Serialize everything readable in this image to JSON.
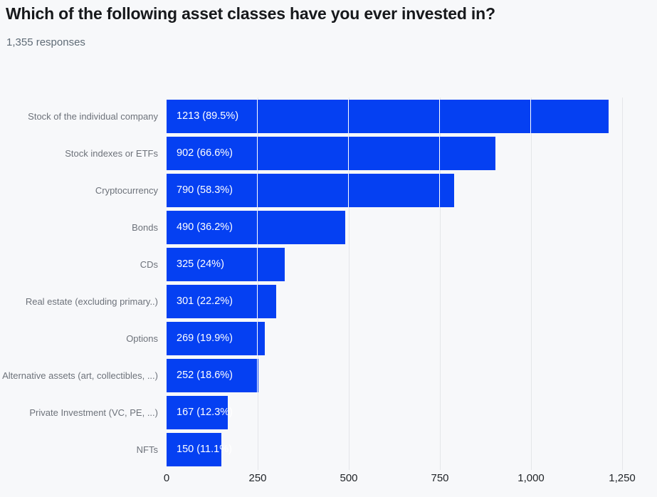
{
  "header": {
    "title": "Which of the following asset classes have you ever invested in?",
    "subtitle": "1,355 responses"
  },
  "chart_data": {
    "type": "bar",
    "orientation": "horizontal",
    "title": "Which of the following asset classes have you ever invested in?",
    "subtitle": "1,355 responses",
    "total_responses": 1355,
    "categories": [
      "Stock of the individual company",
      "Stock indexes or ETFs",
      "Cryptocurrency",
      "Bonds",
      "CDs",
      "Real estate (excluding primary..)",
      "Options",
      "Alternative assets (art, collectibles, ...)",
      "Private Investment (VC, PE, ...)",
      "NFTs"
    ],
    "values": [
      1213,
      902,
      790,
      490,
      325,
      301,
      269,
      252,
      167,
      150
    ],
    "percentages": [
      89.5,
      66.6,
      58.3,
      36.2,
      24,
      22.2,
      19.9,
      18.6,
      12.3,
      11.1
    ],
    "bar_labels": [
      "1213 (89.5%)",
      "902 (66.6%)",
      "790 (58.3%)",
      "490 (36.2%)",
      "325 (24%)",
      "301 (22.2%)",
      "269 (19.9%)",
      "252 (18.6%)",
      "167 (12.3%)",
      "150 (11.1%)"
    ],
    "xlabel": "",
    "ylabel": "",
    "xlim": [
      0,
      1250
    ],
    "x_tick_values": [
      0,
      250,
      500,
      750,
      1000,
      1250
    ],
    "x_tick_labels": [
      "0",
      "250",
      "500",
      "750",
      "1,000",
      "1,250"
    ],
    "grid": true,
    "legend": false,
    "colors": {
      "bar": "#0540f2",
      "background": "#f7f8fa",
      "gridline": "#e4e6e9",
      "bar_gridline": "#ffffff",
      "title_text": "#17191c",
      "subtitle_text": "#5f6b76",
      "category_text": "#6d727a",
      "axis_text": "#212529",
      "bar_label_text": "#ffffff"
    }
  }
}
